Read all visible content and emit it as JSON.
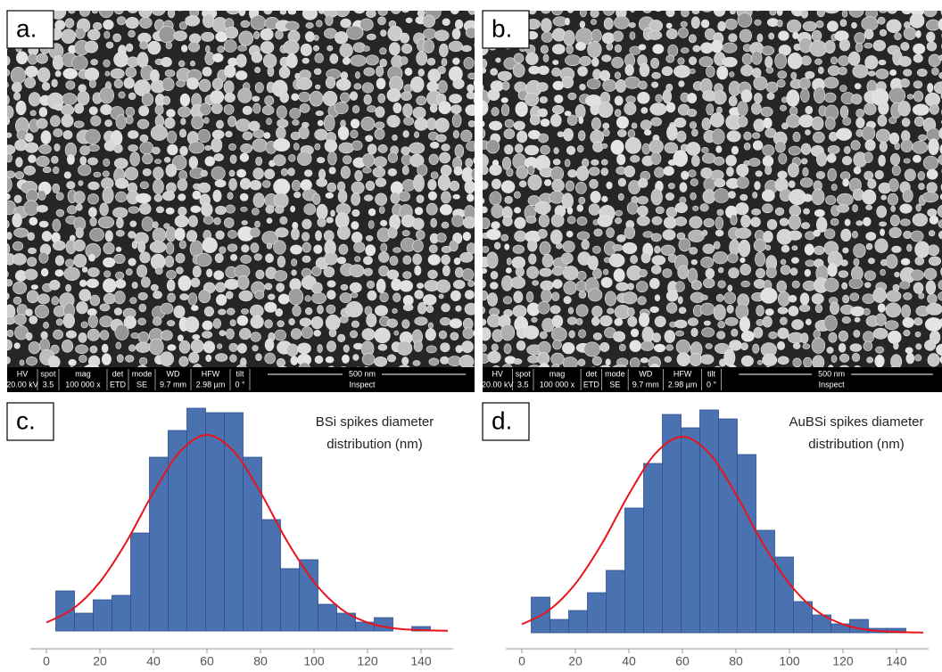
{
  "panels": [
    {
      "label": "a.",
      "sem_bar": {
        "fields": [
          [
            "HV",
            "20.00 kV"
          ],
          [
            "spot",
            "3.5"
          ],
          [
            "mag",
            "100 000 x"
          ],
          [
            "det",
            "ETD"
          ],
          [
            "mode",
            "SE"
          ],
          [
            "WD",
            "9.7 mm"
          ],
          [
            "HFW",
            "2.98 µm"
          ],
          [
            "tilt",
            "0 °"
          ]
        ],
        "scale": "500 nm",
        "software": "Inspect"
      }
    },
    {
      "label": "b.",
      "sem_bar": {
        "fields": [
          [
            "HV",
            "20.00 kV"
          ],
          [
            "spot",
            "3.5"
          ],
          [
            "mag",
            "100 000 x"
          ],
          [
            "det",
            "ETD"
          ],
          [
            "mode",
            "SE"
          ],
          [
            "WD",
            "9.7 mm"
          ],
          [
            "HFW",
            "2.98 µm"
          ],
          [
            "tilt",
            "0 °"
          ]
        ],
        "scale": "500 nm",
        "software": "Inspect"
      }
    },
    {
      "label": "c."
    },
    {
      "label": "d."
    }
  ],
  "chart_data": [
    {
      "type": "histogram",
      "title": [
        "BSi spikes diameter",
        "distribution (nm)"
      ],
      "bins": [
        3.5,
        10.5,
        17.5,
        24.5,
        31.5,
        38.5,
        45.5,
        52.5,
        59.5,
        66.5,
        73.5,
        80.5,
        87.5,
        94.5,
        101.5,
        108.5,
        115.5,
        122.5,
        129.5,
        136.5,
        143.5
      ],
      "values": [
        9,
        4,
        7,
        8,
        22,
        39,
        45,
        50,
        49,
        49,
        39,
        25,
        14,
        16,
        6,
        4,
        2,
        3,
        0,
        1
      ],
      "color": "#4a72b0",
      "fit": {
        "color": "#e8141c",
        "x": [
          0,
          10,
          20,
          30,
          40,
          50,
          60,
          70,
          80,
          90,
          100,
          110,
          120,
          130,
          140,
          150
        ],
        "values": [
          1.9,
          5.0,
          11.0,
          20.1,
          31.1,
          40.3,
          44,
          40.3,
          31.1,
          20.1,
          11.0,
          5.0,
          1.9,
          0.6,
          0.2,
          0.04
        ]
      },
      "xlim": [
        -6,
        152
      ],
      "xticks": [
        0,
        20,
        40,
        60,
        80,
        100,
        120,
        140
      ],
      "ylim": [
        0,
        52
      ]
    },
    {
      "type": "histogram",
      "title": [
        "AuBSi spikes diameter",
        "distribution (nm)"
      ],
      "bins": [
        3.5,
        10.5,
        17.5,
        24.5,
        31.5,
        38.5,
        45.5,
        52.5,
        59.5,
        66.5,
        73.5,
        80.5,
        87.5,
        94.5,
        101.5,
        108.5,
        115.5,
        122.5,
        129.5,
        136.5,
        143.5
      ],
      "values": [
        8,
        3,
        5,
        9,
        14,
        28,
        38,
        49,
        46,
        50,
        48,
        40,
        23,
        17,
        7,
        4,
        2,
        3,
        1,
        1
      ],
      "color": "#4a72b0",
      "fit": {
        "color": "#e8141c",
        "x": [
          0,
          10,
          20,
          30,
          40,
          50,
          60,
          70,
          80,
          90,
          100,
          110,
          120,
          130,
          140,
          150
        ],
        "values": [
          1.9,
          5.0,
          11.0,
          20.1,
          31.1,
          40.3,
          44,
          40.3,
          31.1,
          20.1,
          11.0,
          5.0,
          1.9,
          0.6,
          0.2,
          0.04
        ]
      },
      "xlim": [
        -6,
        152
      ],
      "xticks": [
        0,
        20,
        40,
        60,
        80,
        100,
        120,
        140
      ],
      "ylim": [
        0,
        52
      ]
    }
  ]
}
